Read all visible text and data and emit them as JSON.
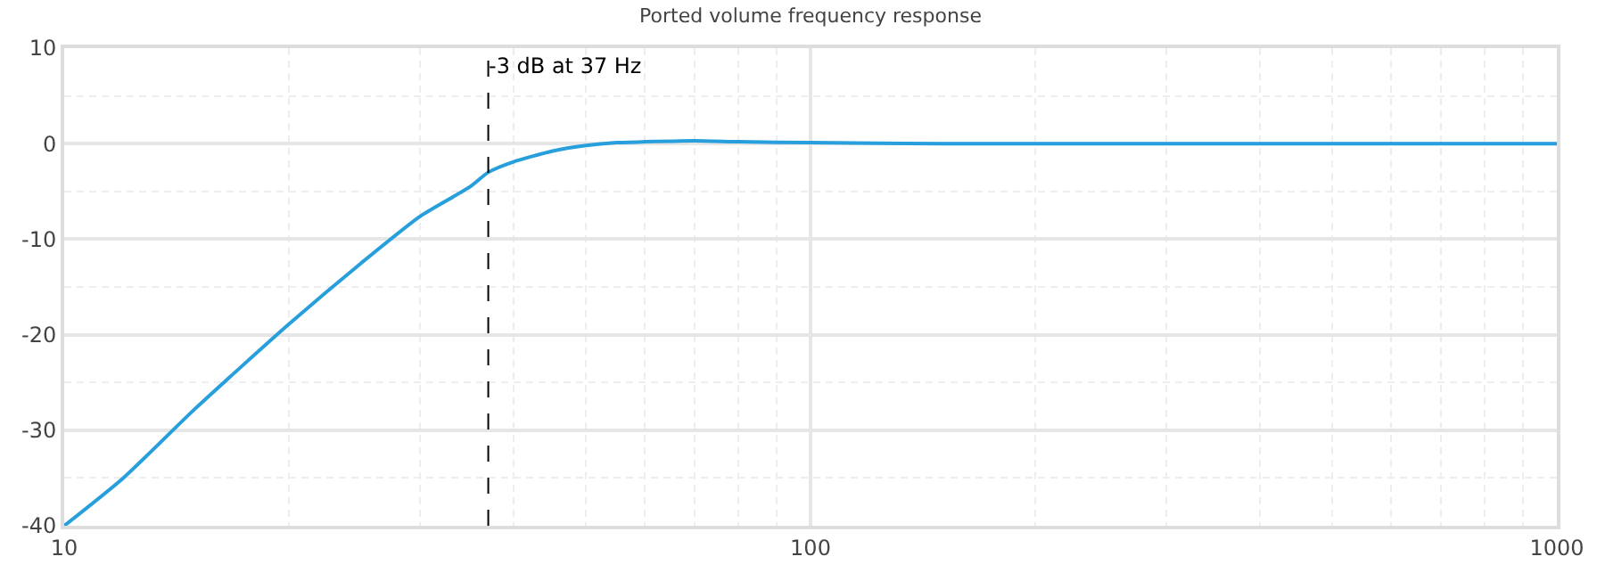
{
  "chart_data": {
    "type": "line",
    "title": "Ported volume frequency response",
    "x": [
      10,
      12,
      15,
      20,
      25,
      30,
      35,
      37,
      40,
      45,
      50,
      55,
      60,
      70,
      80,
      100,
      150,
      200,
      300,
      500,
      1000
    ],
    "series": [
      {
        "color": "#279fdc",
        "values": [
          -40,
          -35,
          -27.7,
          -18.9,
          -12.5,
          -7.6,
          -4.5,
          -3,
          -1.9,
          -0.8,
          -0.2,
          0.1,
          0.2,
          0.3,
          0.2,
          0.1,
          0,
          0,
          0,
          0,
          0
        ]
      }
    ],
    "log": "x",
    "xlim": [
      10,
      1000
    ],
    "xticks": [
      10,
      {
        "value": 20,
        "label": null
      },
      {
        "value": 30,
        "label": null
      },
      {
        "value": 40,
        "label": null
      },
      {
        "value": 50,
        "label": null
      },
      {
        "value": 60,
        "label": null
      },
      {
        "value": 70,
        "label": null
      },
      {
        "value": 80,
        "label": null
      },
      {
        "value": 90,
        "label": null
      },
      100,
      {
        "value": 200,
        "label": null
      },
      {
        "value": 300,
        "label": null
      },
      {
        "value": 400,
        "label": null
      },
      {
        "value": 500,
        "label": null
      },
      {
        "value": 600,
        "label": null
      },
      {
        "value": 700,
        "label": null
      },
      {
        "value": 800,
        "label": null
      },
      {
        "value": 900,
        "label": null
      },
      1000
    ],
    "ylim": [
      -40,
      10
    ],
    "yticks": [
      -40,
      {
        "value": -35,
        "label": null
      },
      -30,
      {
        "value": -25,
        "label": null
      },
      -20,
      {
        "value": -15,
        "label": null
      },
      -10,
      {
        "value": -5,
        "label": null
      },
      0,
      {
        "value": 5,
        "label": null
      },
      10
    ],
    "grid": true,
    "marker": "none",
    "line_style": "solid",
    "ref_lines": [
      {
        "axis": "x",
        "value": 37,
        "label": "-3 dB at 37 Hz",
        "color": "#000000",
        "line_style": "dashed"
      }
    ]
  }
}
